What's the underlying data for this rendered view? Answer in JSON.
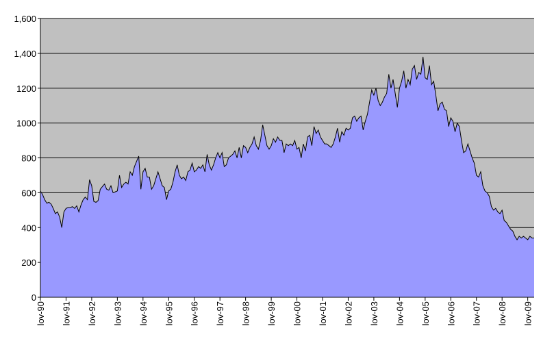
{
  "chart_data": {
    "type": "area",
    "categories": [
      "lov-90",
      null,
      null,
      null,
      null,
      null,
      null,
      null,
      null,
      null,
      null,
      null,
      "lov-91",
      null,
      null,
      null,
      null,
      null,
      null,
      null,
      null,
      null,
      null,
      null,
      "lov-92",
      null,
      null,
      null,
      null,
      null,
      null,
      null,
      null,
      null,
      null,
      null,
      "lov-93",
      null,
      null,
      null,
      null,
      null,
      null,
      null,
      null,
      null,
      null,
      null,
      "lov-94",
      null,
      null,
      null,
      null,
      null,
      null,
      null,
      null,
      null,
      null,
      null,
      "lov-95",
      null,
      null,
      null,
      null,
      null,
      null,
      null,
      null,
      null,
      null,
      null,
      "lov-96",
      null,
      null,
      null,
      null,
      null,
      null,
      null,
      null,
      null,
      null,
      null,
      "lov-97",
      null,
      null,
      null,
      null,
      null,
      null,
      null,
      null,
      null,
      null,
      null,
      "lov-98",
      null,
      null,
      null,
      null,
      null,
      null,
      null,
      null,
      null,
      null,
      null,
      "lov-99",
      null,
      null,
      null,
      null,
      null,
      null,
      null,
      null,
      null,
      null,
      null,
      "lov-00",
      null,
      null,
      null,
      null,
      null,
      null,
      null,
      null,
      null,
      null,
      null,
      "lov-01",
      null,
      null,
      null,
      null,
      null,
      null,
      null,
      null,
      null,
      null,
      null,
      "lov-02",
      null,
      null,
      null,
      null,
      null,
      null,
      null,
      null,
      null,
      null,
      null,
      "lov-03",
      null,
      null,
      null,
      null,
      null,
      null,
      null,
      null,
      null,
      null,
      null,
      "lov-04",
      null,
      null,
      null,
      null,
      null,
      null,
      null,
      null,
      null,
      null,
      null,
      "lov-05",
      null,
      null,
      null,
      null,
      null,
      null,
      null,
      null,
      null,
      null,
      null,
      "lov-06",
      null,
      null,
      null,
      null,
      null,
      null,
      null,
      null,
      null,
      null,
      null,
      "lov-07",
      null,
      null,
      null,
      null,
      null,
      null,
      null,
      null,
      null,
      null,
      null,
      "lov-08",
      null,
      null,
      null,
      null,
      null,
      null,
      null,
      null,
      null,
      null,
      null,
      "lov-09",
      null,
      null,
      null
    ],
    "values": [
      610,
      590,
      560,
      540,
      545,
      535,
      510,
      480,
      490,
      460,
      400,
      490,
      510,
      515,
      515,
      520,
      510,
      525,
      490,
      530,
      560,
      575,
      560,
      675,
      640,
      550,
      545,
      555,
      620,
      635,
      650,
      620,
      615,
      640,
      600,
      605,
      610,
      700,
      630,
      650,
      660,
      650,
      720,
      700,
      750,
      780,
      810,
      620,
      720,
      740,
      690,
      690,
      620,
      640,
      680,
      720,
      680,
      640,
      630,
      560,
      610,
      620,
      660,
      720,
      760,
      700,
      680,
      690,
      670,
      720,
      730,
      770,
      720,
      730,
      750,
      740,
      760,
      720,
      820,
      760,
      730,
      760,
      800,
      830,
      800,
      830,
      750,
      760,
      800,
      810,
      820,
      840,
      800,
      860,
      800,
      870,
      860,
      830,
      860,
      880,
      920,
      870,
      850,
      900,
      990,
      930,
      870,
      850,
      870,
      910,
      890,
      920,
      900,
      900,
      830,
      880,
      870,
      880,
      870,
      900,
      850,
      860,
      800,
      880,
      840,
      920,
      930,
      870,
      980,
      940,
      960,
      920,
      900,
      880,
      880,
      870,
      860,
      880,
      920,
      970,
      890,
      950,
      930,
      970,
      960,
      970,
      1030,
      1040,
      1010,
      1030,
      1040,
      960,
      1010,
      1050,
      1120,
      1190,
      1160,
      1200,
      1130,
      1100,
      1120,
      1150,
      1170,
      1280,
      1200,
      1250,
      1170,
      1090,
      1200,
      1240,
      1300,
      1200,
      1250,
      1220,
      1310,
      1330,
      1250,
      1290,
      1280,
      1380,
      1260,
      1250,
      1330,
      1220,
      1240,
      1160,
      1070,
      1110,
      1120,
      1080,
      1070,
      980,
      1030,
      1010,
      950,
      1000,
      980,
      900,
      830,
      840,
      880,
      840,
      800,
      770,
      700,
      690,
      720,
      640,
      610,
      600,
      580,
      520,
      500,
      510,
      490,
      480,
      500,
      440,
      430,
      410,
      390,
      380,
      350,
      330,
      350,
      340,
      350,
      340,
      330,
      350,
      340,
      340
    ],
    "color": "#9999ff",
    "line_color": "#000000",
    "background": "#c0c0c0",
    "ylim": [
      0,
      1600
    ],
    "yticks": [
      0,
      200,
      400,
      600,
      800,
      1000,
      1200,
      {
        "value": 1400,
        "label": "1,400"
      },
      {
        "value": 1600,
        "label": "1,600"
      }
    ],
    "grid": true
  }
}
